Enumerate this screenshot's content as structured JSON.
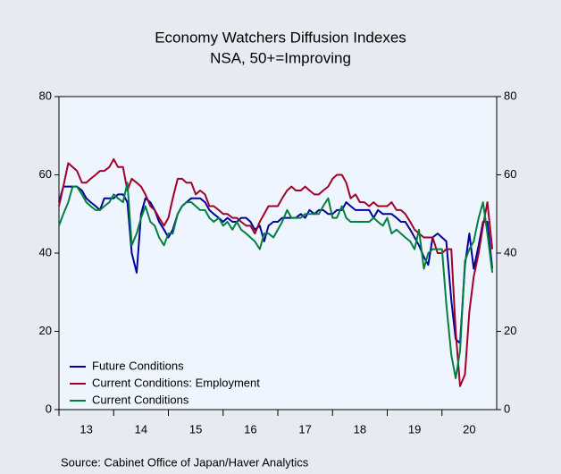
{
  "chart_data": {
    "type": "line",
    "title": "Economy Watchers Diffusion Indexes",
    "subtitle": "NSA, 50+=Improving",
    "source": "Source:  Cabinet Office of Japan/Haver Analytics",
    "x": [
      2013.0,
      2013.08,
      2013.17,
      2013.25,
      2013.33,
      2013.42,
      2013.5,
      2013.58,
      2013.67,
      2013.75,
      2013.83,
      2013.92,
      2014.0,
      2014.08,
      2014.17,
      2014.25,
      2014.33,
      2014.42,
      2014.5,
      2014.58,
      2014.67,
      2014.75,
      2014.83,
      2014.92,
      2015.0,
      2015.08,
      2015.17,
      2015.25,
      2015.33,
      2015.42,
      2015.5,
      2015.58,
      2015.67,
      2015.75,
      2015.83,
      2015.92,
      2016.0,
      2016.08,
      2016.17,
      2016.25,
      2016.33,
      2016.42,
      2016.5,
      2016.58,
      2016.67,
      2016.75,
      2016.83,
      2016.92,
      2017.0,
      2017.08,
      2017.17,
      2017.25,
      2017.33,
      2017.42,
      2017.5,
      2017.58,
      2017.67,
      2017.75,
      2017.83,
      2017.92,
      2018.0,
      2018.08,
      2018.17,
      2018.25,
      2018.33,
      2018.42,
      2018.5,
      2018.58,
      2018.67,
      2018.75,
      2018.83,
      2018.92,
      2019.0,
      2019.08,
      2019.17,
      2019.25,
      2019.33,
      2019.42,
      2019.5,
      2019.58,
      2019.67,
      2019.75,
      2019.83,
      2019.92,
      2020.0,
      2020.08,
      2020.17,
      2020.25,
      2020.33,
      2020.42,
      2020.5,
      2020.58,
      2020.67,
      2020.75,
      2020.83,
      2020.92
    ],
    "series": [
      {
        "name": "Future Conditions",
        "color": "#0000a0",
        "values": [
          53,
          57,
          57,
          57,
          57,
          56,
          54,
          53,
          52,
          51,
          54,
          54,
          54,
          55,
          55,
          53,
          40,
          35,
          50,
          54,
          53,
          51,
          48,
          46,
          44,
          46,
          50,
          52,
          53,
          54,
          54,
          54,
          53,
          51,
          50,
          49,
          48,
          49,
          48,
          48,
          49,
          49,
          48,
          46,
          47,
          43,
          47,
          48,
          48,
          49,
          49,
          49,
          49,
          50,
          49,
          51,
          50,
          51,
          51,
          50,
          50,
          51,
          51,
          53,
          52,
          51,
          51,
          51,
          51,
          49,
          51,
          50,
          50,
          50,
          49,
          48,
          48,
          46,
          44,
          42,
          39,
          37,
          44,
          45,
          44,
          43,
          28,
          18,
          17,
          37,
          45,
          36,
          42,
          48,
          48,
          36
        ]
      },
      {
        "name": "Current Conditions: Employment",
        "color": "#a00028",
        "values": [
          52,
          57,
          63,
          62,
          61,
          58,
          58,
          59,
          60,
          61,
          61,
          62,
          64,
          62,
          62,
          56,
          59,
          58,
          57,
          55,
          52,
          51,
          49,
          47,
          49,
          54,
          59,
          59,
          58,
          58,
          55,
          56,
          55,
          52,
          52,
          51,
          50,
          50,
          49,
          49,
          48,
          47,
          47,
          45,
          48,
          50,
          52,
          52,
          52,
          54,
          56,
          57,
          56,
          56,
          57,
          56,
          55,
          55,
          56,
          57,
          59,
          60,
          60,
          58,
          54,
          55,
          53,
          53,
          52,
          53,
          52,
          52,
          52,
          53,
          51,
          51,
          50,
          48,
          46,
          45,
          44,
          44,
          44,
          40,
          40,
          41,
          41,
          20,
          6,
          9,
          25,
          34,
          40,
          47,
          53,
          41
        ]
      },
      {
        "name": "Current Conditions",
        "color": "#008040",
        "values": [
          47,
          50,
          53,
          57,
          57,
          55,
          53,
          52,
          51,
          51,
          52,
          53,
          55,
          54,
          53,
          58,
          42,
          45,
          49,
          52,
          48,
          47,
          44,
          42,
          45,
          45,
          50,
          52,
          53,
          53,
          52,
          51,
          51,
          49,
          48,
          49,
          47,
          48,
          46,
          48,
          46,
          45,
          44,
          43,
          41,
          45,
          45,
          44,
          46,
          48,
          51,
          49,
          49,
          49,
          50,
          50,
          50,
          50,
          52,
          54,
          49,
          49,
          52,
          49,
          48,
          48,
          48,
          48,
          48,
          49,
          48,
          47,
          49,
          45,
          46,
          45,
          44,
          43,
          41,
          46,
          36,
          40,
          41,
          41,
          41,
          27,
          14,
          8,
          15,
          38,
          41,
          43,
          49,
          53,
          45,
          35
        ]
      }
    ],
    "xlim": [
      2013,
      2021
    ],
    "xticks": [
      {
        "value": 2013.5,
        "label": "13"
      },
      {
        "value": 2014.5,
        "label": "14"
      },
      {
        "value": 2015.5,
        "label": "15"
      },
      {
        "value": 2016.5,
        "label": "16"
      },
      {
        "value": 2017.5,
        "label": "17"
      },
      {
        "value": 2018.5,
        "label": "18"
      },
      {
        "value": 2019.5,
        "label": "19"
      },
      {
        "value": 2020.5,
        "label": "20"
      }
    ],
    "ylim": [
      0,
      80
    ],
    "yticks": [
      0,
      20,
      40,
      60,
      80
    ],
    "legend": "lower left"
  }
}
